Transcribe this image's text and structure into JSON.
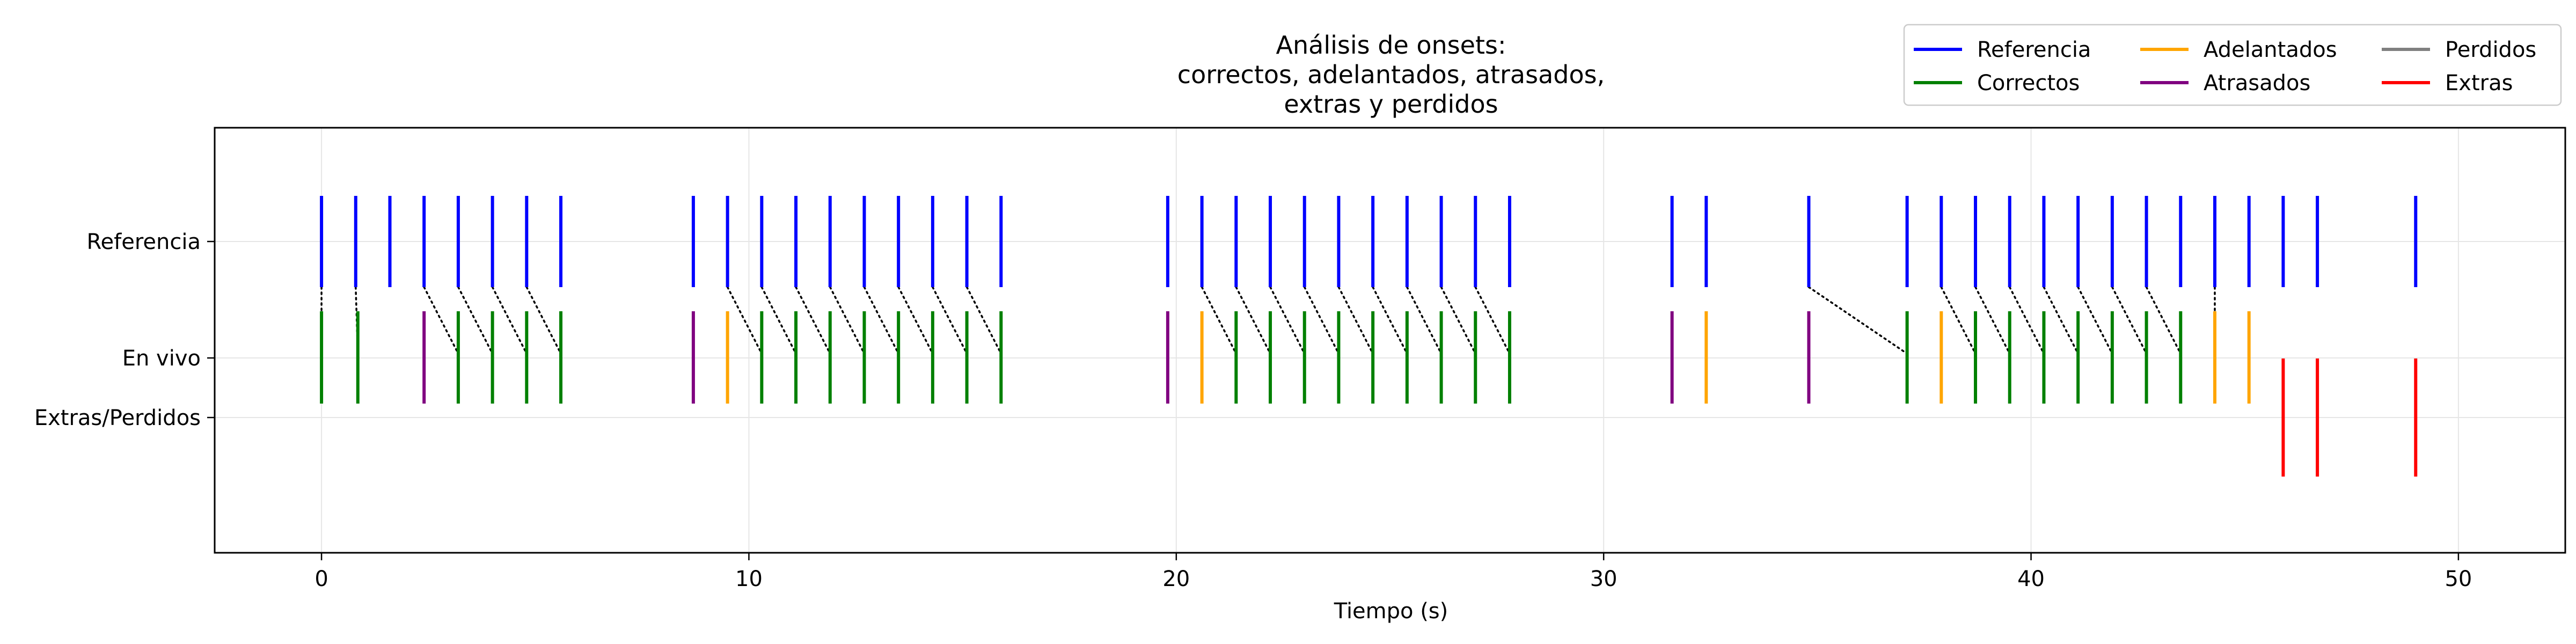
{
  "chart_data": {
    "type": "event-raster",
    "title": [
      "Análisis de onsets:",
      "correctos, adelantados, atrasados,",
      "extras y perdidos"
    ],
    "xlabel": "Tiempo (s)",
    "xlim": [
      -2.5,
      52.5
    ],
    "xticks": [
      0,
      10,
      20,
      30,
      40,
      50
    ],
    "row_labels": [
      "Referencia",
      "En vivo",
      "Extras/Perdidos"
    ],
    "grid": true,
    "legend_position": "top-right",
    "legend": [
      {
        "name": "Referencia",
        "color": "#0000ff"
      },
      {
        "name": "Correctos",
        "color": "#008000"
      },
      {
        "name": "Adelantados",
        "color": "#ffa500"
      },
      {
        "name": "Atrasados",
        "color": "#800080"
      },
      {
        "name": "Perdidos",
        "color": "#808080"
      },
      {
        "name": "Extras",
        "color": "#ff0000"
      }
    ],
    "reference": [
      0,
      0.8,
      1.6,
      2.4,
      3.2,
      4.0,
      4.8,
      5.6,
      8.7,
      9.5,
      10.3,
      11.1,
      11.9,
      12.7,
      13.5,
      14.3,
      15.1,
      15.9,
      19.8,
      20.6,
      21.4,
      22.2,
      23.0,
      23.8,
      24.6,
      25.4,
      26.2,
      27.0,
      27.8,
      31.6,
      32.4,
      34.8,
      37.1,
      37.9,
      38.7,
      39.5,
      40.3,
      41.1,
      41.9,
      42.7,
      43.5,
      44.3,
      45.1,
      45.9,
      46.7,
      49.0
    ],
    "correctos": [
      0,
      0.85,
      3.2,
      4.0,
      4.8,
      5.6,
      10.3,
      11.1,
      11.9,
      12.7,
      13.5,
      14.3,
      15.1,
      15.9,
      21.4,
      22.2,
      23.0,
      23.8,
      24.6,
      25.4,
      26.2,
      27.0,
      27.8,
      37.1,
      38.7,
      39.5,
      40.3,
      41.1,
      41.9,
      42.7,
      43.5
    ],
    "adelantados": [
      9.5,
      20.6,
      32.4,
      37.9,
      44.3,
      45.1
    ],
    "atrasados": [
      2.4,
      8.7,
      19.8,
      31.6,
      34.8
    ],
    "perdidos": [],
    "extras": [
      45.9,
      46.7,
      49.0
    ],
    "matches": [
      [
        0,
        0
      ],
      [
        0.8,
        0.85
      ],
      [
        2.4,
        3.2
      ],
      [
        3.2,
        4.0
      ],
      [
        4.0,
        4.8
      ],
      [
        4.8,
        5.6
      ],
      [
        9.5,
        10.3
      ],
      [
        10.3,
        11.1
      ],
      [
        11.1,
        11.9
      ],
      [
        11.9,
        12.7
      ],
      [
        12.7,
        13.5
      ],
      [
        13.5,
        14.3
      ],
      [
        14.3,
        15.1
      ],
      [
        15.1,
        15.9
      ],
      [
        20.6,
        21.4
      ],
      [
        21.4,
        22.2
      ],
      [
        22.2,
        23.0
      ],
      [
        23.0,
        23.8
      ],
      [
        23.8,
        24.6
      ],
      [
        24.6,
        25.4
      ],
      [
        25.4,
        26.2
      ],
      [
        26.2,
        27.0
      ],
      [
        27.0,
        27.8
      ],
      [
        34.8,
        37.1
      ],
      [
        37.9,
        38.7
      ],
      [
        38.7,
        39.5
      ],
      [
        39.5,
        40.3
      ],
      [
        40.3,
        41.1
      ],
      [
        41.1,
        41.9
      ],
      [
        41.9,
        42.7
      ],
      [
        42.7,
        43.5
      ],
      [
        44.3,
        44.3
      ]
    ]
  }
}
